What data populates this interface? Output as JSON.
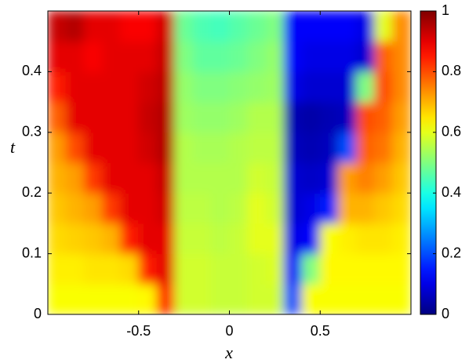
{
  "chart_data": {
    "type": "heatmap",
    "colormap": "jet",
    "xlabel": "x",
    "ylabel": "t",
    "x": [
      -0.95,
      -0.85,
      -0.75,
      -0.65,
      -0.55,
      -0.45,
      -0.35,
      -0.25,
      -0.15,
      -0.05,
      0.05,
      0.15,
      0.25,
      0.35,
      0.45,
      0.55,
      0.65,
      0.75,
      0.85,
      0.95
    ],
    "y": [
      0.025,
      0.075,
      0.125,
      0.175,
      0.225,
      0.275,
      0.325,
      0.375,
      0.425,
      0.475
    ],
    "z": [
      [
        0.62,
        0.62,
        0.62,
        0.62,
        0.62,
        0.63,
        0.85,
        0.58,
        0.58,
        0.57,
        0.57,
        0.58,
        0.58,
        0.2,
        0.62,
        0.62,
        0.62,
        0.62,
        0.62,
        0.62
      ],
      [
        0.64,
        0.64,
        0.65,
        0.65,
        0.66,
        0.85,
        0.9,
        0.58,
        0.58,
        0.57,
        0.57,
        0.58,
        0.59,
        0.12,
        0.5,
        0.63,
        0.63,
        0.63,
        0.63,
        0.63
      ],
      [
        0.66,
        0.67,
        0.68,
        0.7,
        0.85,
        0.9,
        0.9,
        0.57,
        0.57,
        0.56,
        0.57,
        0.6,
        0.6,
        0.1,
        0.12,
        0.62,
        0.64,
        0.65,
        0.65,
        0.64
      ],
      [
        0.68,
        0.7,
        0.72,
        0.82,
        0.9,
        0.9,
        0.92,
        0.56,
        0.56,
        0.55,
        0.56,
        0.6,
        0.58,
        0.08,
        0.1,
        0.15,
        0.7,
        0.7,
        0.68,
        0.66
      ],
      [
        0.7,
        0.72,
        0.82,
        0.9,
        0.9,
        0.9,
        0.93,
        0.55,
        0.55,
        0.55,
        0.55,
        0.58,
        0.57,
        0.08,
        0.07,
        0.08,
        0.72,
        0.75,
        0.72,
        0.68
      ],
      [
        0.72,
        0.8,
        0.9,
        0.9,
        0.9,
        0.92,
        0.95,
        0.55,
        0.54,
        0.54,
        0.55,
        0.56,
        0.56,
        0.06,
        0.05,
        0.06,
        0.2,
        0.78,
        0.76,
        0.7
      ],
      [
        0.78,
        0.9,
        0.9,
        0.9,
        0.9,
        0.93,
        0.95,
        0.53,
        0.52,
        0.52,
        0.53,
        0.55,
        0.55,
        0.05,
        0.04,
        0.05,
        0.06,
        0.8,
        0.78,
        0.72
      ],
      [
        0.85,
        0.9,
        0.9,
        0.9,
        0.9,
        0.92,
        0.94,
        0.52,
        0.5,
        0.5,
        0.51,
        0.52,
        0.53,
        0.1,
        0.08,
        0.08,
        0.08,
        0.5,
        0.8,
        0.74
      ],
      [
        0.9,
        0.9,
        0.88,
        0.9,
        0.9,
        0.9,
        0.93,
        0.5,
        0.47,
        0.47,
        0.48,
        0.5,
        0.52,
        0.12,
        0.1,
        0.1,
        0.1,
        0.08,
        0.78,
        0.74
      ],
      [
        0.93,
        0.95,
        0.9,
        0.9,
        0.88,
        0.88,
        0.92,
        0.48,
        0.45,
        0.44,
        0.46,
        0.48,
        0.5,
        0.12,
        0.12,
        0.12,
        0.12,
        0.1,
        0.6,
        0.74
      ]
    ],
    "xlim": [
      -1,
      1
    ],
    "ylim": [
      0,
      0.5
    ],
    "xticks": [
      -0.5,
      0,
      0.5
    ],
    "yticks": [
      0,
      0.1,
      0.2,
      0.3,
      0.4
    ],
    "clim": [
      0,
      1
    ],
    "cticks": [
      0,
      0.2,
      0.4,
      0.6,
      0.8,
      1
    ]
  }
}
